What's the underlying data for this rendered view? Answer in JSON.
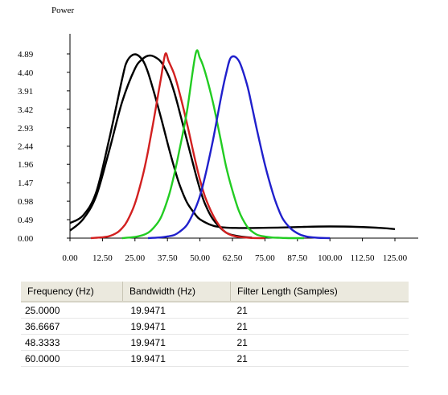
{
  "chart_data": {
    "type": "line",
    "ylabel": "Power",
    "xlabel": "",
    "x_ticks": [
      "0.00",
      "12.50",
      "25.00",
      "37.50",
      "50.00",
      "62.50",
      "75.00",
      "87.50",
      "100.00",
      "112.50",
      "125.00"
    ],
    "y_ticks": [
      "0.00",
      "0.49",
      "0.98",
      "1.47",
      "1.96",
      "2.44",
      "2.93",
      "3.42",
      "3.91",
      "4.40",
      "4.89"
    ],
    "xlim": [
      0,
      125
    ],
    "ylim": [
      0,
      4.89
    ],
    "grid": false,
    "legend": "none",
    "series": [
      {
        "color": "#000000",
        "x": [
          0,
          5,
          10,
          15,
          20,
          22,
          25,
          28,
          30,
          32,
          35,
          38,
          40,
          42,
          45,
          48,
          50,
          55,
          60,
          65,
          70,
          80,
          90,
          100,
          110,
          120,
          125
        ],
        "y": [
          0.4,
          0.6,
          1.2,
          2.6,
          4.2,
          4.7,
          4.88,
          4.72,
          4.4,
          3.95,
          3.2,
          2.4,
          1.9,
          1.45,
          0.95,
          0.65,
          0.5,
          0.33,
          0.28,
          0.27,
          0.27,
          0.28,
          0.3,
          0.31,
          0.3,
          0.27,
          0.24
        ]
      },
      {
        "color": "#000000",
        "x": [
          0,
          5,
          10,
          15,
          20,
          25,
          28,
          30,
          32,
          35,
          38,
          40,
          42,
          45,
          48,
          50,
          52,
          55,
          60,
          65,
          70
        ],
        "y": [
          0.2,
          0.5,
          1.1,
          2.3,
          3.6,
          4.5,
          4.76,
          4.84,
          4.83,
          4.68,
          4.3,
          3.9,
          3.4,
          2.6,
          1.8,
          1.3,
          0.9,
          0.5,
          0.15,
          0.05,
          0.01
        ]
      },
      {
        "color": "#d22020",
        "x": [
          8,
          12,
          15,
          18,
          20,
          22,
          25,
          28,
          30,
          32,
          34,
          35,
          36.67,
          38,
          40,
          42,
          45,
          48,
          50,
          52,
          55,
          58,
          60,
          62,
          65,
          70,
          75
        ],
        "y": [
          0,
          0.02,
          0.05,
          0.14,
          0.26,
          0.45,
          0.92,
          1.66,
          2.3,
          3.05,
          3.85,
          4.24,
          4.89,
          4.69,
          4.37,
          3.9,
          3.05,
          2.12,
          1.55,
          1.09,
          0.61,
          0.28,
          0.15,
          0.08,
          0.03,
          0.005,
          0
        ]
      },
      {
        "color": "#22cc22",
        "x": [
          20,
          25,
          28,
          30,
          32,
          35,
          38,
          40,
          42,
          45,
          48.33,
          50,
          52,
          55,
          58,
          60,
          62,
          65,
          68,
          70,
          72,
          75,
          78,
          80,
          82,
          85,
          90
        ],
        "y": [
          0,
          0.03,
          0.08,
          0.14,
          0.26,
          0.55,
          1.12,
          1.66,
          2.3,
          3.36,
          4.89,
          4.78,
          4.4,
          3.6,
          2.6,
          1.92,
          1.38,
          0.72,
          0.32,
          0.18,
          0.09,
          0.04,
          0.015,
          0.01,
          0.005,
          0,
          0
        ]
      },
      {
        "color": "#2020cc",
        "x": [
          30,
          35,
          38,
          40,
          42,
          45,
          48,
          50,
          52,
          55,
          58,
          60,
          62,
          65,
          68,
          70,
          72,
          75,
          78,
          80,
          82,
          85,
          88,
          90,
          92,
          95,
          100
        ],
        "y": [
          0,
          0.02,
          0.05,
          0.08,
          0.16,
          0.35,
          0.75,
          1.12,
          1.65,
          2.6,
          3.7,
          4.35,
          4.8,
          4.7,
          4.1,
          3.5,
          2.85,
          1.95,
          1.2,
          0.8,
          0.5,
          0.25,
          0.11,
          0.06,
          0.03,
          0.01,
          0
        ]
      }
    ]
  },
  "table": {
    "headers": [
      "Frequency (Hz)",
      "Bandwidth (Hz)",
      "Filter Length (Samples)"
    ],
    "rows": [
      [
        "25.0000",
        "19.9471",
        "21"
      ],
      [
        "36.6667",
        "19.9471",
        "21"
      ],
      [
        "48.3333",
        "19.9471",
        "21"
      ],
      [
        "60.0000",
        "19.9471",
        "21"
      ]
    ]
  }
}
